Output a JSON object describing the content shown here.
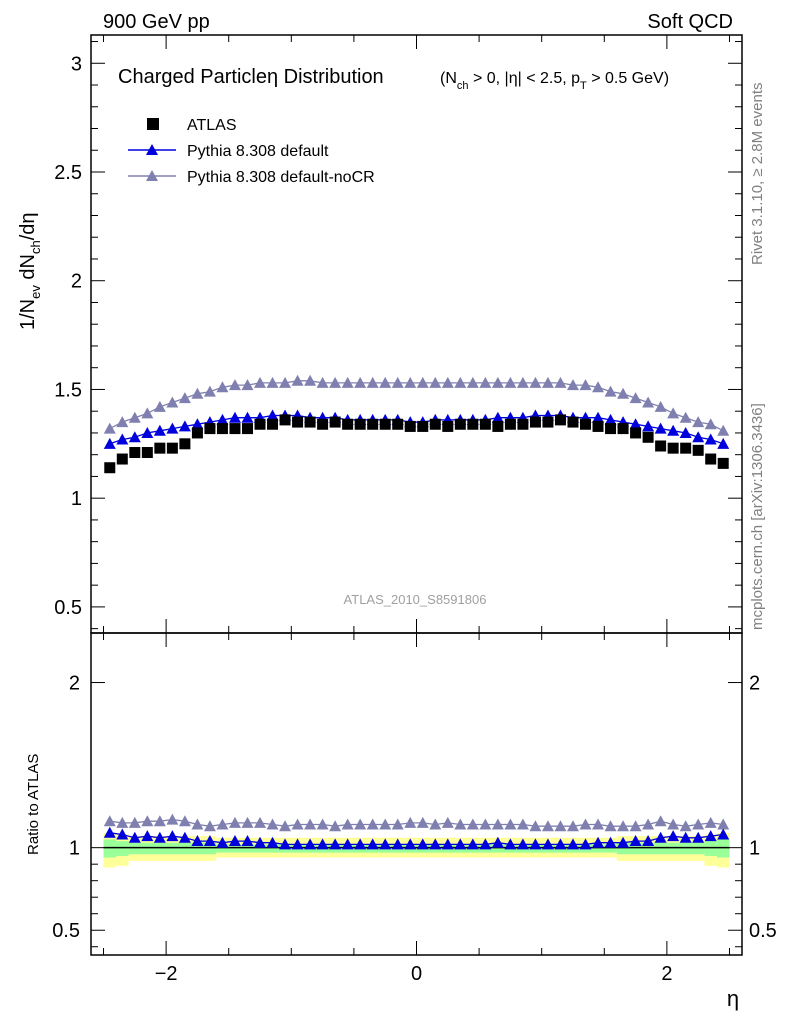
{
  "header": {
    "left": "900 GeV pp",
    "right": "Soft QCD"
  },
  "side_labels": {
    "top": "Rivet 3.1.10, ≥ 2.8M events",
    "bottom": "mcplots.cern.ch [arXiv:1306.3436]"
  },
  "chart_data": [
    {
      "type": "scatter",
      "title_main": "Charged Particleη Distribution",
      "title_cuts": {
        "a": "(N",
        "a_sub": "ch",
        "b": " > 0, |η| < 2.5, p",
        "b_sub": "T",
        "c": " > 0.5 GeV)"
      },
      "ylabel": {
        "p1": "1/N",
        "s1": "ev",
        "p2": " dN",
        "s2": "ch",
        "p3": "/dη"
      },
      "xlabel": "η",
      "watermark": "ATLAS_2010_S8591806",
      "xlim": [
        -2.6,
        2.6
      ],
      "ylim": [
        0.38,
        3.13
      ],
      "yticks": [
        "0.5",
        "1",
        "1.5",
        "2",
        "2.5",
        "3"
      ],
      "ytick_values": [
        0.5,
        1,
        1.5,
        2,
        2.5,
        3
      ],
      "xticks": [
        "−2",
        "0",
        "2"
      ],
      "xtick_values": [
        -2,
        0,
        2
      ],
      "x": [
        -2.45,
        -2.35,
        -2.25,
        -2.15,
        -2.05,
        -1.95,
        -1.85,
        -1.75,
        -1.65,
        -1.55,
        -1.45,
        -1.35,
        -1.25,
        -1.15,
        -1.05,
        -0.95,
        -0.85,
        -0.75,
        -0.65,
        -0.55,
        -0.45,
        -0.35,
        -0.25,
        -0.15,
        -0.05,
        0.05,
        0.15,
        0.25,
        0.35,
        0.45,
        0.55,
        0.65,
        0.75,
        0.85,
        0.95,
        1.05,
        1.15,
        1.25,
        1.35,
        1.45,
        1.55,
        1.65,
        1.75,
        1.85,
        1.95,
        2.05,
        2.15,
        2.25,
        2.35,
        2.45
      ],
      "legend": {
        "position": "top-left",
        "entries": [
          "ATLAS",
          "Pythia 8.308 default",
          "Pythia 8.308 default-noCR"
        ]
      },
      "series": [
        {
          "name": "ATLAS",
          "marker": "square",
          "color": "#000000",
          "values": [
            1.14,
            1.18,
            1.21,
            1.21,
            1.23,
            1.23,
            1.25,
            1.3,
            1.32,
            1.32,
            1.32,
            1.32,
            1.34,
            1.34,
            1.36,
            1.35,
            1.35,
            1.34,
            1.35,
            1.34,
            1.34,
            1.34,
            1.34,
            1.34,
            1.33,
            1.33,
            1.34,
            1.33,
            1.34,
            1.34,
            1.34,
            1.33,
            1.34,
            1.34,
            1.35,
            1.35,
            1.36,
            1.35,
            1.34,
            1.33,
            1.32,
            1.32,
            1.3,
            1.28,
            1.24,
            1.23,
            1.23,
            1.22,
            1.18,
            1.16
          ]
        },
        {
          "name": "Pythia 8.308 default",
          "marker": "triangle",
          "color": "#0000dd",
          "values": [
            1.25,
            1.27,
            1.28,
            1.3,
            1.31,
            1.32,
            1.33,
            1.34,
            1.35,
            1.36,
            1.37,
            1.37,
            1.37,
            1.38,
            1.38,
            1.38,
            1.37,
            1.37,
            1.37,
            1.36,
            1.36,
            1.36,
            1.36,
            1.36,
            1.35,
            1.35,
            1.36,
            1.36,
            1.36,
            1.36,
            1.36,
            1.37,
            1.37,
            1.37,
            1.38,
            1.38,
            1.38,
            1.37,
            1.37,
            1.37,
            1.36,
            1.35,
            1.34,
            1.33,
            1.32,
            1.31,
            1.3,
            1.28,
            1.27,
            1.25
          ]
        },
        {
          "name": "Pythia 8.308 default-noCR",
          "marker": "triangle",
          "color": "#8080b0",
          "values": [
            1.32,
            1.35,
            1.37,
            1.39,
            1.42,
            1.44,
            1.46,
            1.48,
            1.49,
            1.51,
            1.52,
            1.52,
            1.53,
            1.53,
            1.53,
            1.54,
            1.54,
            1.53,
            1.53,
            1.53,
            1.53,
            1.53,
            1.53,
            1.53,
            1.53,
            1.53,
            1.53,
            1.53,
            1.53,
            1.53,
            1.53,
            1.53,
            1.53,
            1.53,
            1.53,
            1.53,
            1.53,
            1.52,
            1.52,
            1.51,
            1.49,
            1.48,
            1.46,
            1.44,
            1.42,
            1.39,
            1.37,
            1.35,
            1.34,
            1.31
          ]
        }
      ]
    },
    {
      "type": "scatter",
      "ylabel": "Ratio to ATLAS",
      "ylim": [
        0.35,
        2.3
      ],
      "yticks": [
        "0.5",
        "1",
        "2"
      ],
      "ytick_values": [
        0.5,
        1,
        2
      ],
      "reference_line": 1,
      "bands": {
        "colors": {
          "outer": "#ffff99",
          "inner": "#99ff99"
        },
        "x_edges": [
          -2.5,
          -2.4,
          -2.3,
          -1.6,
          1.6,
          2.3,
          2.4,
          2.5
        ],
        "outer_lo": [
          0.88,
          0.89,
          0.92,
          0.94,
          0.92,
          0.89,
          0.88
        ],
        "outer_hi": [
          1.09,
          1.08,
          1.07,
          1.06,
          1.07,
          1.08,
          1.09
        ],
        "inner_lo": [
          0.94,
          0.95,
          0.96,
          0.97,
          0.96,
          0.95,
          0.94
        ],
        "inner_hi": [
          1.05,
          1.04,
          1.03,
          1.02,
          1.03,
          1.04,
          1.05
        ]
      },
      "series": [
        {
          "name": "Pythia 8.308 default",
          "color": "#0000dd",
          "values": [
            1.09,
            1.08,
            1.06,
            1.07,
            1.06,
            1.07,
            1.06,
            1.04,
            1.04,
            1.03,
            1.04,
            1.04,
            1.03,
            1.03,
            1.02,
            1.02,
            1.02,
            1.02,
            1.02,
            1.02,
            1.02,
            1.02,
            1.02,
            1.02,
            1.02,
            1.02,
            1.02,
            1.02,
            1.02,
            1.02,
            1.02,
            1.03,
            1.02,
            1.02,
            1.02,
            1.02,
            1.02,
            1.02,
            1.02,
            1.03,
            1.03,
            1.03,
            1.04,
            1.04,
            1.06,
            1.07,
            1.06,
            1.06,
            1.07,
            1.08
          ]
        },
        {
          "name": "Pythia 8.308 default-noCR",
          "color": "#8080b0",
          "values": [
            1.16,
            1.15,
            1.15,
            1.16,
            1.16,
            1.17,
            1.16,
            1.14,
            1.13,
            1.14,
            1.15,
            1.15,
            1.15,
            1.14,
            1.13,
            1.14,
            1.14,
            1.14,
            1.13,
            1.14,
            1.14,
            1.14,
            1.14,
            1.14,
            1.15,
            1.15,
            1.14,
            1.15,
            1.14,
            1.14,
            1.14,
            1.14,
            1.14,
            1.14,
            1.13,
            1.13,
            1.13,
            1.13,
            1.14,
            1.14,
            1.13,
            1.13,
            1.13,
            1.14,
            1.16,
            1.14,
            1.13,
            1.14,
            1.15,
            1.14
          ]
        }
      ]
    }
  ]
}
